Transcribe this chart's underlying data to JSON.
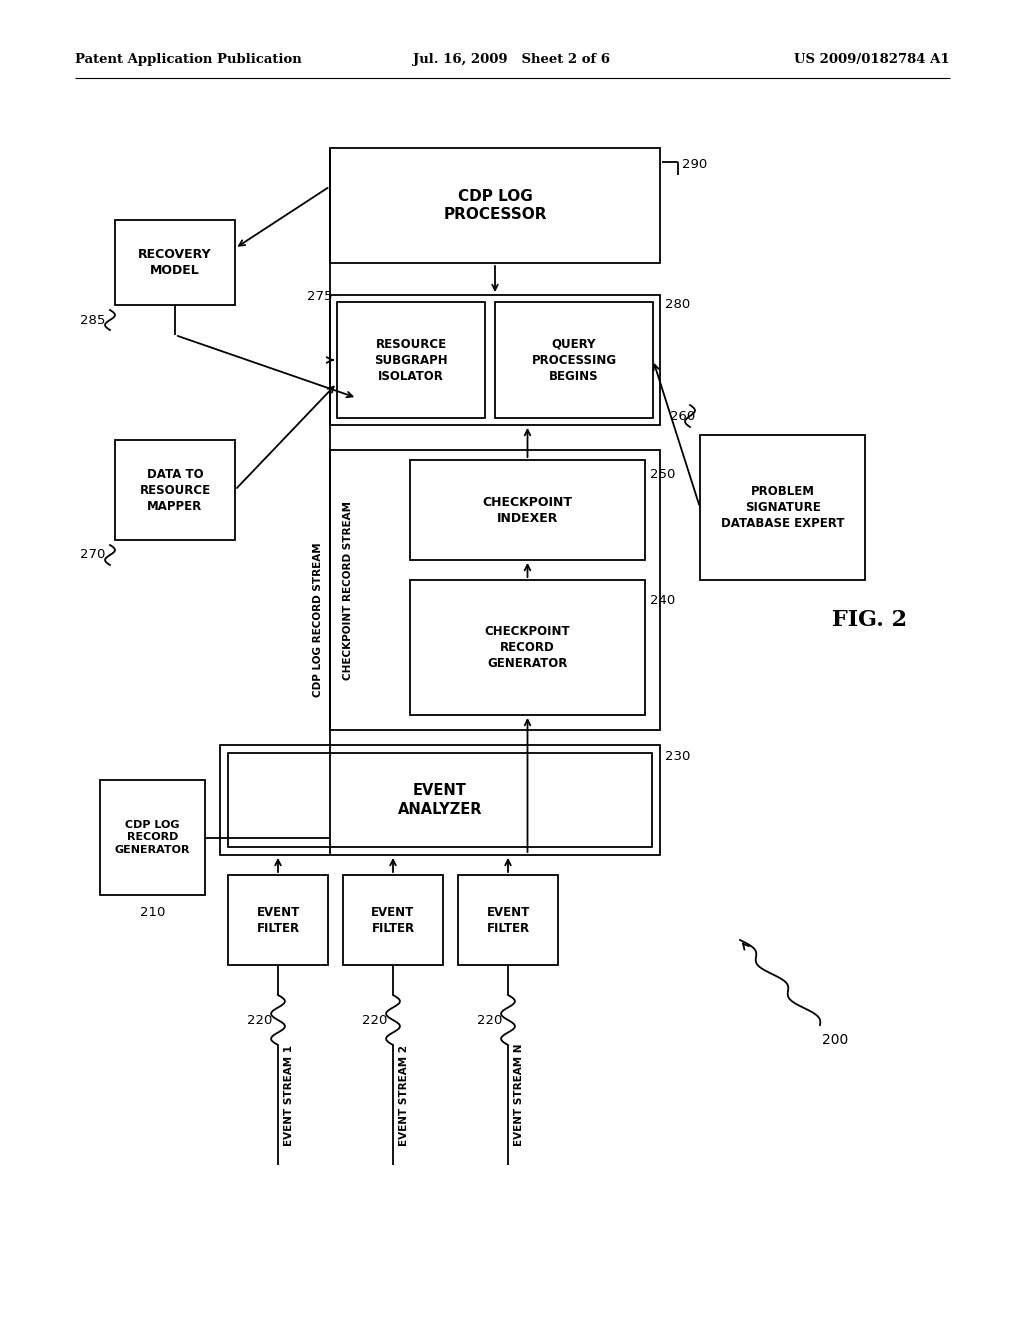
{
  "bg_color": "#ffffff",
  "header_left": "Patent Application Publication",
  "header_mid": "Jul. 16, 2009   Sheet 2 of 6",
  "header_right": "US 2009/0182784 A1"
}
